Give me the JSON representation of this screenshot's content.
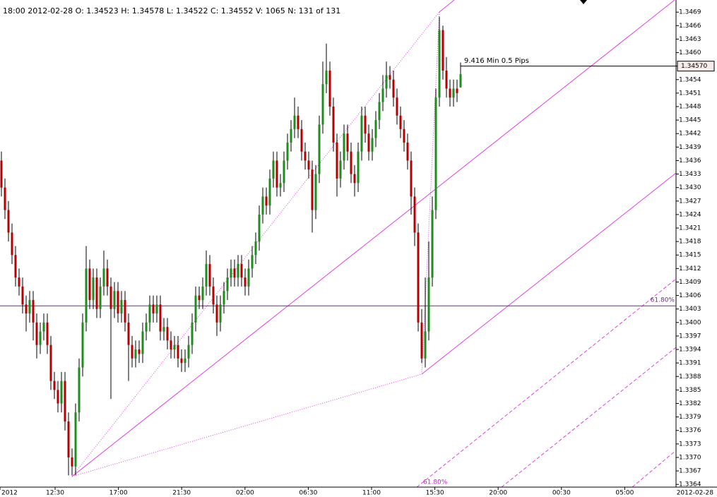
{
  "chart_data": {
    "type": "candlestick",
    "header": "18:00 2012-02-28  O: 1.34523  H: 1.34578  L: 1.34522  C: 1.34552  V: 1065  N: 131 of 131",
    "up_color": "#1e8c1e",
    "down_color": "#b40000",
    "open": [
      1.3436,
      1.343,
      1.3425,
      1.342,
      1.3415,
      1.341,
      1.3408,
      1.3404,
      1.3402,
      1.3405,
      1.34,
      1.3395,
      1.3398,
      1.34,
      1.3395,
      1.3387,
      1.3385,
      1.3382,
      1.3387,
      1.3378,
      1.337,
      1.3368,
      1.338,
      1.339,
      1.34,
      1.3412,
      1.3405,
      1.341,
      1.3403,
      1.3408,
      1.3412,
      1.3408,
      1.3403,
      1.3407,
      1.3402,
      1.3405,
      1.34,
      1.3395,
      1.3392,
      1.3394,
      1.3393,
      1.3398,
      1.34,
      1.3404,
      1.3402,
      1.3404,
      1.3398,
      1.3399,
      1.3396,
      1.3394,
      1.3395,
      1.3392,
      1.3391,
      1.3392,
      1.3395,
      1.34,
      1.3406,
      1.3405,
      1.3408,
      1.3413,
      1.3408,
      1.3404,
      1.34,
      1.3404,
      1.3407,
      1.341,
      1.3412,
      1.341,
      1.3413,
      1.341,
      1.3408,
      1.3412,
      1.3415,
      1.3418,
      1.3424,
      1.3428,
      1.3426,
      1.3432,
      1.3436,
      1.343,
      1.3431,
      1.3436,
      1.344,
      1.3443,
      1.3446,
      1.3443,
      1.3438,
      1.3436,
      1.3434,
      1.3425,
      1.3433,
      1.3444,
      1.3453,
      1.3456,
      1.3448,
      1.344,
      1.3432,
      1.3436,
      1.3442,
      1.3438,
      1.3433,
      1.3431,
      1.3438,
      1.3446,
      1.3442,
      1.3438,
      1.3441,
      1.3445,
      1.3449,
      1.3452,
      1.3455,
      1.3454,
      1.345,
      1.3446,
      1.3443,
      1.344,
      1.3436,
      1.3428,
      1.342,
      1.34,
      1.3392,
      1.3398,
      1.341,
      1.3425,
      1.345,
      1.3465,
      1.3456,
      1.3452,
      1.345,
      1.3452,
      1.34523
    ],
    "high": [
      1.3438,
      1.3432,
      1.3427,
      1.3422,
      1.3417,
      1.3412,
      1.341,
      1.3406,
      1.3407,
      1.3407,
      1.3402,
      1.34,
      1.3402,
      1.3402,
      1.3397,
      1.3389,
      1.3387,
      1.3389,
      1.3389,
      1.338,
      1.3372,
      1.3382,
      1.3392,
      1.3402,
      1.3417,
      1.3414,
      1.3412,
      1.3412,
      1.341,
      1.3416,
      1.3414,
      1.341,
      1.3409,
      1.3409,
      1.3407,
      1.3407,
      1.3402,
      1.3397,
      1.3396,
      1.3396,
      1.34,
      1.3402,
      1.3406,
      1.3406,
      1.3406,
      1.3406,
      1.3401,
      1.3401,
      1.3398,
      1.3397,
      1.3397,
      1.3394,
      1.3394,
      1.3397,
      1.3402,
      1.3408,
      1.3408,
      1.341,
      1.3416,
      1.3415,
      1.341,
      1.3406,
      1.3406,
      1.3409,
      1.3412,
      1.3414,
      1.3414,
      1.3415,
      1.3415,
      1.3412,
      1.3414,
      1.3417,
      1.342,
      1.3426,
      1.343,
      1.343,
      1.3434,
      1.3438,
      1.3438,
      1.3433,
      1.3438,
      1.3442,
      1.3445,
      1.345,
      1.3448,
      1.3445,
      1.344,
      1.3438,
      1.3436,
      1.3435,
      1.3446,
      1.3458,
      1.3462,
      1.3458,
      1.345,
      1.3442,
      1.3438,
      1.3444,
      1.3444,
      1.344,
      1.3435,
      1.344,
      1.3448,
      1.3448,
      1.3444,
      1.3443,
      1.3447,
      1.3451,
      1.3455,
      1.3458,
      1.3457,
      1.3456,
      1.3452,
      1.3448,
      1.3445,
      1.3442,
      1.3438,
      1.343,
      1.3422,
      1.3403,
      1.341,
      1.3418,
      1.3428,
      1.3452,
      1.3468,
      1.3466,
      1.3459,
      1.3454,
      1.3454,
      1.3454,
      1.34578
    ],
    "low": [
      1.3428,
      1.3423,
      1.3418,
      1.3413,
      1.3408,
      1.3406,
      1.3402,
      1.3398,
      1.34,
      1.3396,
      1.3392,
      1.3393,
      1.3396,
      1.3393,
      1.3385,
      1.3383,
      1.338,
      1.338,
      1.3376,
      1.3366,
      1.3366,
      1.3366,
      1.3378,
      1.3388,
      1.3398,
      1.3403,
      1.3403,
      1.3401,
      1.3401,
      1.3406,
      1.3406,
      1.3383,
      1.3401,
      1.34,
      1.34,
      1.3398,
      1.3387,
      1.339,
      1.339,
      1.3391,
      1.3391,
      1.3396,
      1.3398,
      1.34,
      1.34,
      1.3396,
      1.3396,
      1.3394,
      1.3392,
      1.3392,
      1.339,
      1.3389,
      1.3389,
      1.339,
      1.3393,
      1.3398,
      1.3403,
      1.3403,
      1.3406,
      1.3406,
      1.3402,
      1.3397,
      1.3398,
      1.3402,
      1.3405,
      1.3408,
      1.3408,
      1.3408,
      1.3408,
      1.3406,
      1.3406,
      1.341,
      1.3413,
      1.3416,
      1.3422,
      1.3424,
      1.3424,
      1.343,
      1.3428,
      1.3428,
      1.3429,
      1.3434,
      1.3438,
      1.3441,
      1.3441,
      1.3436,
      1.3434,
      1.3432,
      1.342,
      1.3423,
      1.3431,
      1.3442,
      1.3451,
      1.3446,
      1.3438,
      1.3428,
      1.343,
      1.3434,
      1.3436,
      1.3431,
      1.3428,
      1.3429,
      1.3436,
      1.344,
      1.3436,
      1.3436,
      1.3439,
      1.3443,
      1.3447,
      1.345,
      1.3452,
      1.3448,
      1.3444,
      1.3441,
      1.3438,
      1.3434,
      1.3424,
      1.3417,
      1.3398,
      1.3391,
      1.339,
      1.3396,
      1.3408,
      1.3423,
      1.3448,
      1.3454,
      1.345,
      1.3448,
      1.3448,
      1.3449,
      1.34522
    ],
    "close": [
      1.343,
      1.3425,
      1.342,
      1.3415,
      1.341,
      1.3408,
      1.3404,
      1.3402,
      1.3405,
      1.34,
      1.3395,
      1.3398,
      1.34,
      1.3395,
      1.3387,
      1.3385,
      1.3382,
      1.3387,
      1.3378,
      1.337,
      1.3368,
      1.338,
      1.339,
      1.34,
      1.3412,
      1.3405,
      1.341,
      1.3403,
      1.3408,
      1.3412,
      1.3408,
      1.3403,
      1.3407,
      1.3402,
      1.3405,
      1.34,
      1.3395,
      1.3392,
      1.3394,
      1.3393,
      1.3398,
      1.34,
      1.3404,
      1.3402,
      1.3404,
      1.3398,
      1.3399,
      1.3396,
      1.3394,
      1.3395,
      1.3392,
      1.3391,
      1.3392,
      1.3395,
      1.34,
      1.3406,
      1.3405,
      1.3408,
      1.3413,
      1.3408,
      1.3404,
      1.34,
      1.3404,
      1.3407,
      1.341,
      1.3412,
      1.341,
      1.3413,
      1.341,
      1.3408,
      1.3412,
      1.3415,
      1.3418,
      1.3424,
      1.3428,
      1.3426,
      1.3432,
      1.3436,
      1.343,
      1.3431,
      1.3436,
      1.344,
      1.3443,
      1.3446,
      1.3443,
      1.3438,
      1.3436,
      1.3434,
      1.3425,
      1.3433,
      1.3444,
      1.3453,
      1.3456,
      1.3448,
      1.344,
      1.3432,
      1.3436,
      1.3442,
      1.3438,
      1.3433,
      1.3431,
      1.3438,
      1.3446,
      1.3442,
      1.3438,
      1.3441,
      1.3445,
      1.3449,
      1.3452,
      1.3455,
      1.3454,
      1.345,
      1.3446,
      1.3443,
      1.344,
      1.3436,
      1.3428,
      1.342,
      1.34,
      1.3392,
      1.3398,
      1.341,
      1.3425,
      1.345,
      1.3465,
      1.3456,
      1.3452,
      1.345,
      1.3452,
      1.3451,
      1.34552
    ],
    "ylim": [
      1.33634,
      1.34717
    ],
    "yticks": [
      1.3364,
      1.3367,
      {
        "value": 1.337,
        "label": "1.3370"
      },
      1.3373,
      1.3376,
      1.3379,
      1.3382,
      1.3385,
      1.3388,
      1.3391,
      1.3394,
      1.3397,
      {
        "value": 1.34,
        "label": "1.3400"
      },
      1.3403,
      1.3406,
      1.3409,
      1.3412,
      1.3415,
      1.3418,
      1.3421,
      1.3424,
      1.3427,
      {
        "value": 1.343,
        "label": "1.3430"
      },
      1.3433,
      1.3436,
      1.3439,
      1.3442,
      1.3445,
      1.3448,
      1.3451,
      1.3454,
      1.3457,
      {
        "value": 1.346,
        "label": "1.3460"
      },
      1.3463,
      1.3466,
      1.3469
    ],
    "x_labels": [
      "2012",
      "12:30",
      "17:00",
      "21:30",
      "02:00",
      "06:30",
      "11:00",
      "15:30",
      "20:00",
      "00:30",
      "05:00"
    ],
    "x_end_label": "2012-02-28",
    "price_line": {
      "value": 1.3457,
      "label": "1.34570"
    },
    "price_note": "9.416 Min 0.5 Pips",
    "fib_line": {
      "value": 1.34037,
      "label": "61.80%"
    },
    "fib_note": "61.80%"
  }
}
